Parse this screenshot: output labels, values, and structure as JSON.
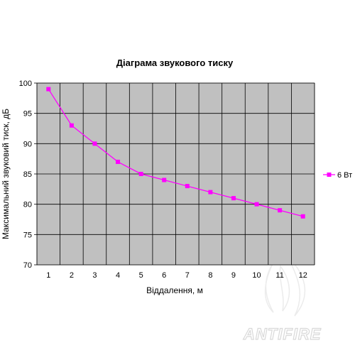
{
  "chart_data": {
    "type": "line",
    "title": "Діаграма звукового тиску",
    "xlabel": "Віддалення, м",
    "ylabel": "Максимальний звуковий тиск, дБ",
    "x": [
      1,
      2,
      3,
      4,
      5,
      6,
      7,
      8,
      9,
      10,
      11,
      12
    ],
    "x_tick_labels": [
      "1",
      "2",
      "3",
      "4",
      "5",
      "6",
      "7",
      "8",
      "9",
      "10",
      "11",
      "12"
    ],
    "ylim": [
      70,
      100
    ],
    "y_ticks": [
      70,
      75,
      80,
      85,
      90,
      95,
      100
    ],
    "y_tick_labels": [
      "70",
      "75",
      "80",
      "85",
      "90",
      "95",
      "100"
    ],
    "grid": true,
    "legend_position": "right",
    "series": [
      {
        "name": "6 Вт",
        "values": [
          99,
          93,
          90,
          87,
          85,
          84,
          83,
          82,
          81,
          80,
          79,
          78
        ],
        "color": "#ff00ff",
        "marker": "square"
      }
    ],
    "plot_background": "#c0c0c0",
    "grid_color": "#000000"
  },
  "watermark": {
    "text": "ANTIFIRE",
    "icon": "flame-logo-icon"
  }
}
